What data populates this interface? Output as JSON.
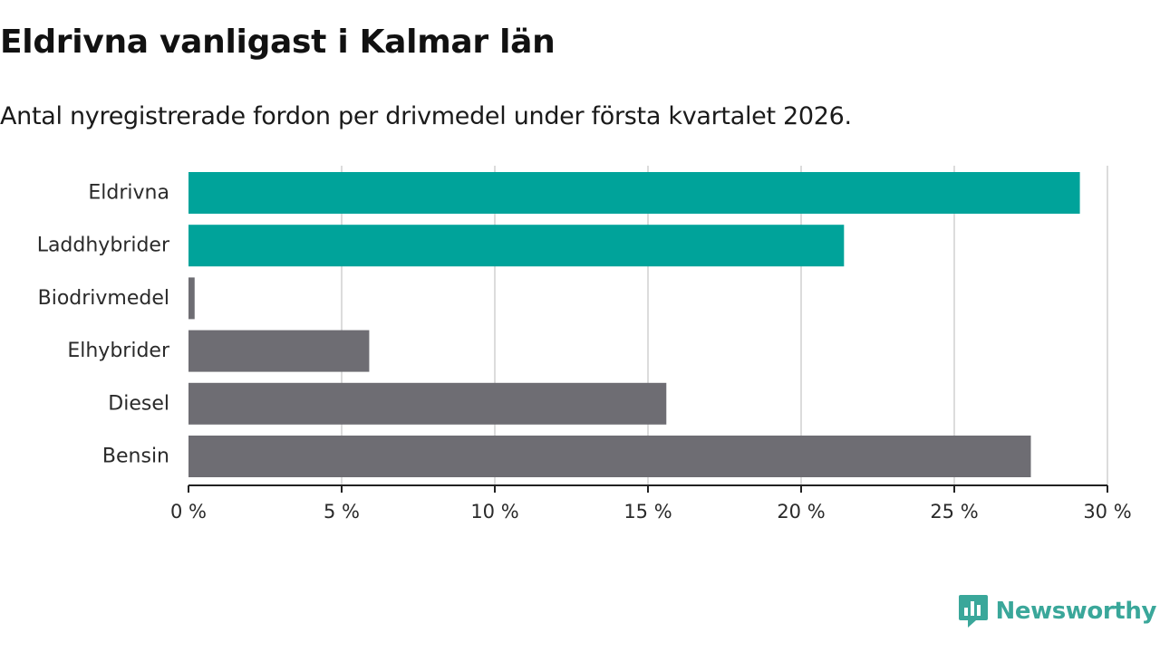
{
  "title": "Eldrivna vanligast i Kalmar län",
  "subtitle": "Antal nyregistrerade fordon per drivmedel under första kvartalet 2026.",
  "chart_data": {
    "type": "bar",
    "orientation": "horizontal",
    "categories": [
      "Eldrivna",
      "Laddhybrider",
      "Biodrivmedel",
      "Elhybrider",
      "Diesel",
      "Bensin"
    ],
    "values": [
      29.1,
      21.4,
      0.2,
      5.9,
      15.6,
      27.5
    ],
    "unit": "%",
    "highlight": [
      true,
      true,
      false,
      false,
      false,
      false
    ],
    "xlim": [
      0,
      30
    ],
    "xticks": [
      0,
      5,
      10,
      15,
      20,
      25,
      30
    ],
    "xtick_labels": [
      "0 %",
      "5 %",
      "10 %",
      "15 %",
      "20 %",
      "25 %",
      "30 %"
    ],
    "grid": true,
    "colors": {
      "highlight": "#00a39a",
      "default": "#6e6d73",
      "grid": "#dcdcdc",
      "axis": "#222222"
    }
  },
  "brand": {
    "name": "Newsworthy",
    "color": "#3aa79a"
  }
}
